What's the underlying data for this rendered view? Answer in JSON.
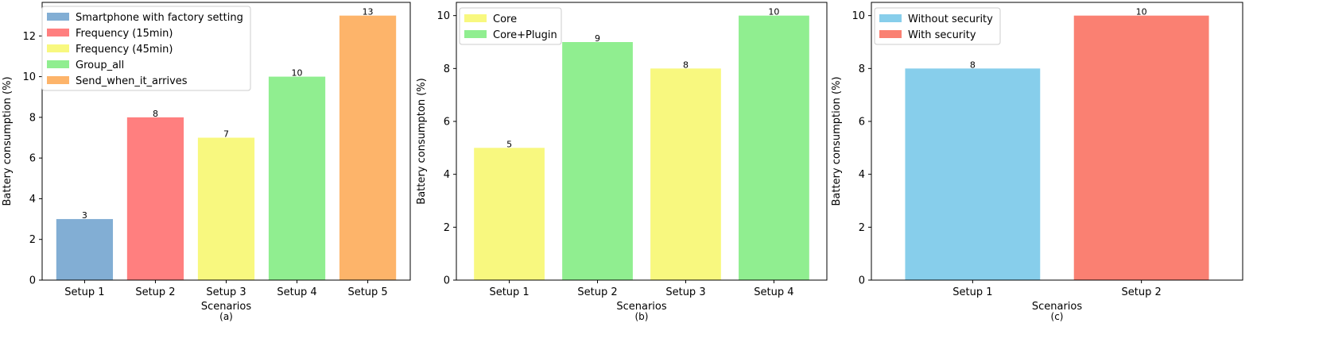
{
  "chart_data": [
    {
      "type": "bar",
      "caption": "(a)",
      "xlabel": "Scenarios",
      "ylabel": "Battery consumption (%)",
      "ylim": [
        0,
        13.65
      ],
      "yticks": [
        0,
        2,
        4,
        6,
        8,
        10,
        12
      ],
      "legend_position": "top-left",
      "categories": [
        "Setup 1",
        "Setup 2",
        "Setup 3",
        "Setup 4",
        "Setup 5"
      ],
      "values": [
        3,
        8,
        7,
        10,
        13
      ],
      "series": [
        {
          "name": "Smartphone with factory setting",
          "color": "#82aed4"
        },
        {
          "name": "Frequency (15min)",
          "color": "#ff7f7f"
        },
        {
          "name": "Frequency (45min)",
          "color": "#f8f87f"
        },
        {
          "name": "Group_all",
          "color": "#90ee90"
        },
        {
          "name": "Send_when_it_arrives",
          "color": "#fdb46a"
        }
      ],
      "bar_colors": [
        "#82aed4",
        "#ff7f7f",
        "#f8f87f",
        "#90ee90",
        "#fdb46a"
      ]
    },
    {
      "type": "bar",
      "caption": "(b)",
      "xlabel": "Scenarios",
      "ylabel": "Battery consumpton (%)",
      "ylim": [
        0,
        10.5
      ],
      "yticks": [
        0,
        2,
        4,
        6,
        8,
        10
      ],
      "legend_position": "top-left",
      "categories": [
        "Setup 1",
        "Setup 2",
        "Setup 3",
        "Setup 4"
      ],
      "values": [
        5,
        9,
        8,
        10
      ],
      "series": [
        {
          "name": "Core",
          "color": "#f8f87f"
        },
        {
          "name": "Core+Plugin",
          "color": "#90ee90"
        }
      ],
      "bar_colors": [
        "#f8f87f",
        "#90ee90",
        "#f8f87f",
        "#90ee90"
      ]
    },
    {
      "type": "bar",
      "caption": "(c)",
      "xlabel": "Scenarios",
      "ylabel": "Battery consumption (%)",
      "ylim": [
        0,
        10.5
      ],
      "yticks": [
        0,
        2,
        4,
        6,
        8,
        10
      ],
      "legend_position": "top-left",
      "categories": [
        "Setup 1",
        "Setup 2"
      ],
      "values": [
        8,
        10
      ],
      "series": [
        {
          "name": "Without security",
          "color": "#87ceeb"
        },
        {
          "name": "With security",
          "color": "#fa8072"
        }
      ],
      "bar_colors": [
        "#87ceeb",
        "#fa8072"
      ]
    }
  ]
}
